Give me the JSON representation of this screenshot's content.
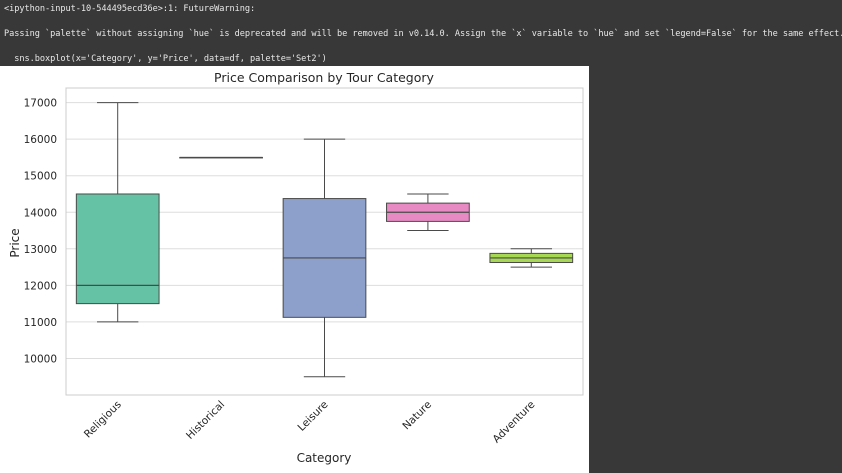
{
  "warning": {
    "line1": "<ipython-input-10-544495ecd36e>:1: FutureWarning:",
    "line2": "Passing `palette` without assigning `hue` is deprecated and will be removed in v0.14.0. Assign the `x` variable to `hue` and set `legend=False` for the same effect.",
    "line3": "  sns.boxplot(x='Category', y='Price', data=df, palette='Set2')"
  },
  "chart_data": {
    "type": "box",
    "title": "Price Comparison by Tour Category",
    "xlabel": "Category",
    "ylabel": "Price",
    "ylim": [
      9000,
      17400
    ],
    "yticks": [
      10000,
      11000,
      12000,
      13000,
      14000,
      15000,
      16000,
      17000
    ],
    "grid": true,
    "categories": [
      "Religious",
      "Historical",
      "Leisure",
      "Nature",
      "Adventure"
    ],
    "colors": [
      "#66c2a5",
      "#fc8d62",
      "#8da0cb",
      "#e78ac3",
      "#a6d854"
    ],
    "boxes": [
      {
        "category": "Religious",
        "whislo": 11000,
        "q1": 11500,
        "med": 12000,
        "q3": 14500,
        "whishi": 17000
      },
      {
        "category": "Historical",
        "whislo": 15500,
        "q1": 15500,
        "med": 15500,
        "q3": 15500,
        "whishi": 15500
      },
      {
        "category": "Leisure",
        "whislo": 9500,
        "q1": 11125,
        "med": 12750,
        "q3": 14375,
        "whishi": 16000
      },
      {
        "category": "Nature",
        "whislo": 13500,
        "q1": 13750,
        "med": 14000,
        "q3": 14250,
        "whishi": 14500
      },
      {
        "category": "Adventure",
        "whislo": 12500,
        "q1": 12625,
        "med": 12750,
        "q3": 12875,
        "whishi": 13000
      }
    ]
  }
}
